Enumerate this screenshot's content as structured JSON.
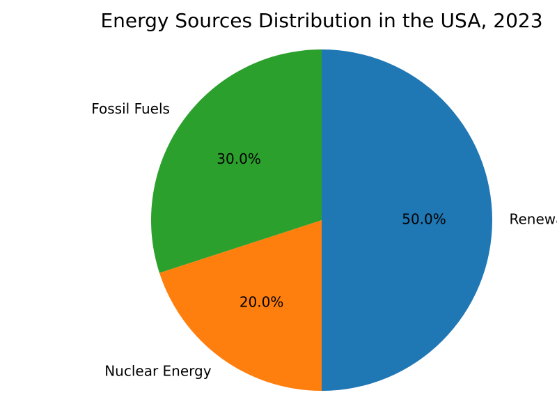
{
  "chart_data": {
    "type": "pie",
    "title": "Energy Sources Distribution in the USA, 2023",
    "start_angle_deg": 90,
    "direction": "clockwise",
    "legend": "none",
    "slices": [
      {
        "label": "Renewable Energy",
        "value": 50.0,
        "percent_label": "50.0%",
        "color": "#1f77b4"
      },
      {
        "label": "Nuclear Energy",
        "value": 20.0,
        "percent_label": "20.0%",
        "color": "#ff7f0e"
      },
      {
        "label": "Fossil Fuels",
        "value": 30.0,
        "percent_label": "30.0%",
        "color": "#2ca02c"
      }
    ]
  }
}
